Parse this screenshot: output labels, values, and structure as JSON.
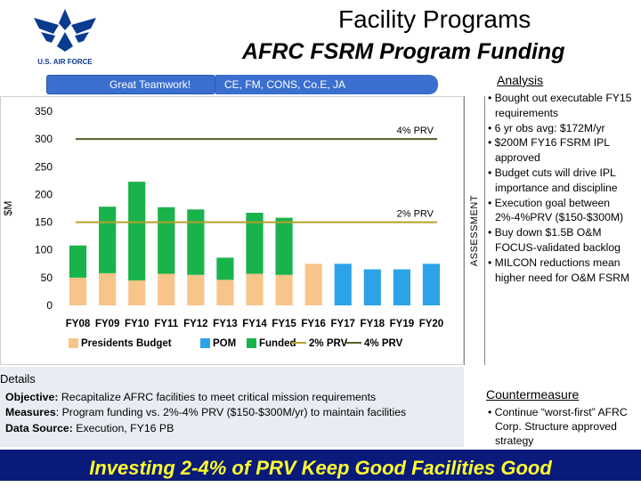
{
  "header": {
    "logo_text": "U.S. AIR FORCE",
    "title": "Facility Programs",
    "subtitle": "AFRC FSRM Program Funding"
  },
  "banner": {
    "teamwork": "Great Teamwork!",
    "partners": "CE, FM, CONS, Co.E, JA"
  },
  "side_label": "ASSESSMENT",
  "analysis": {
    "heading": "Analysis",
    "bullets": [
      "• Bought out executable FY15 requirements",
      "• 6 yr obs avg: $172M/yr",
      "• $200M FY16 FSRM IPL approved",
      "• Budget cuts will drive IPL importance and discipline",
      "• Execution goal  between 2%-4%PRV ($150-$300M)",
      "• Buy down $1.5B O&M FOCUS-validated backlog",
      "• MILCON reductions mean  higher need for O&M FSRM"
    ]
  },
  "details": {
    "heading": "Details",
    "objective_label": "Objective:",
    "objective_text": " Recapitalize AFRC facilities to meet critical mission requirements",
    "measures_label": "Measures",
    "measures_text": ": Program funding vs. 2%-4% PRV ($150-$300M/yr) to maintain facilities",
    "source_label": "Data Source:",
    "source_text": " Execution, FY16 PB"
  },
  "countermeasure": {
    "heading": "Countermeasure",
    "bullets": [
      "• Continue “worst-first” AFRC Corp. Structure approved strategy"
    ]
  },
  "footer": "Investing 2-4% of PRV Keep Good Facilities Good",
  "chart_data": {
    "type": "bar",
    "ylabel": "$M",
    "ylim": [
      0,
      350
    ],
    "yticks": [
      0,
      50,
      100,
      150,
      200,
      250,
      300,
      350
    ],
    "categories": [
      "FY08",
      "FY09",
      "FY10",
      "FY11",
      "FY12",
      "FY13",
      "FY14",
      "FY15",
      "FY16",
      "FY17",
      "FY18",
      "FY19",
      "FY20"
    ],
    "series": [
      {
        "name": "Presidents Budget",
        "color": "#f7c58a",
        "values": [
          null,
          null,
          null,
          null,
          null,
          null,
          null,
          null,
          75,
          null,
          null,
          null,
          null
        ]
      },
      {
        "name": "POM",
        "color": "#2ca3e8",
        "values": [
          null,
          null,
          null,
          null,
          null,
          null,
          null,
          null,
          null,
          75,
          65,
          65,
          75
        ]
      },
      {
        "name": "Funded",
        "color": "#19b34b",
        "values": [
          58,
          120,
          178,
          120,
          118,
          40,
          110,
          103,
          null,
          null,
          null,
          null,
          null
        ]
      }
    ],
    "stack_base": {
      "color": "#f7c58a",
      "values": [
        50,
        58,
        45,
        57,
        55,
        46,
        57,
        55,
        null,
        null,
        null,
        null,
        null
      ]
    },
    "reference_lines": [
      {
        "name": "2% PRV",
        "label": "2% PRV",
        "value": 150,
        "color": "#b5a12e"
      },
      {
        "name": "4% PRV",
        "label": "4% PRV",
        "value": 300,
        "color": "#5a5a2a"
      }
    ],
    "legend": [
      "Presidents Budget",
      "POM",
      "Funded",
      "2% PRV",
      "4% PRV"
    ],
    "legend_position": "bottom"
  }
}
